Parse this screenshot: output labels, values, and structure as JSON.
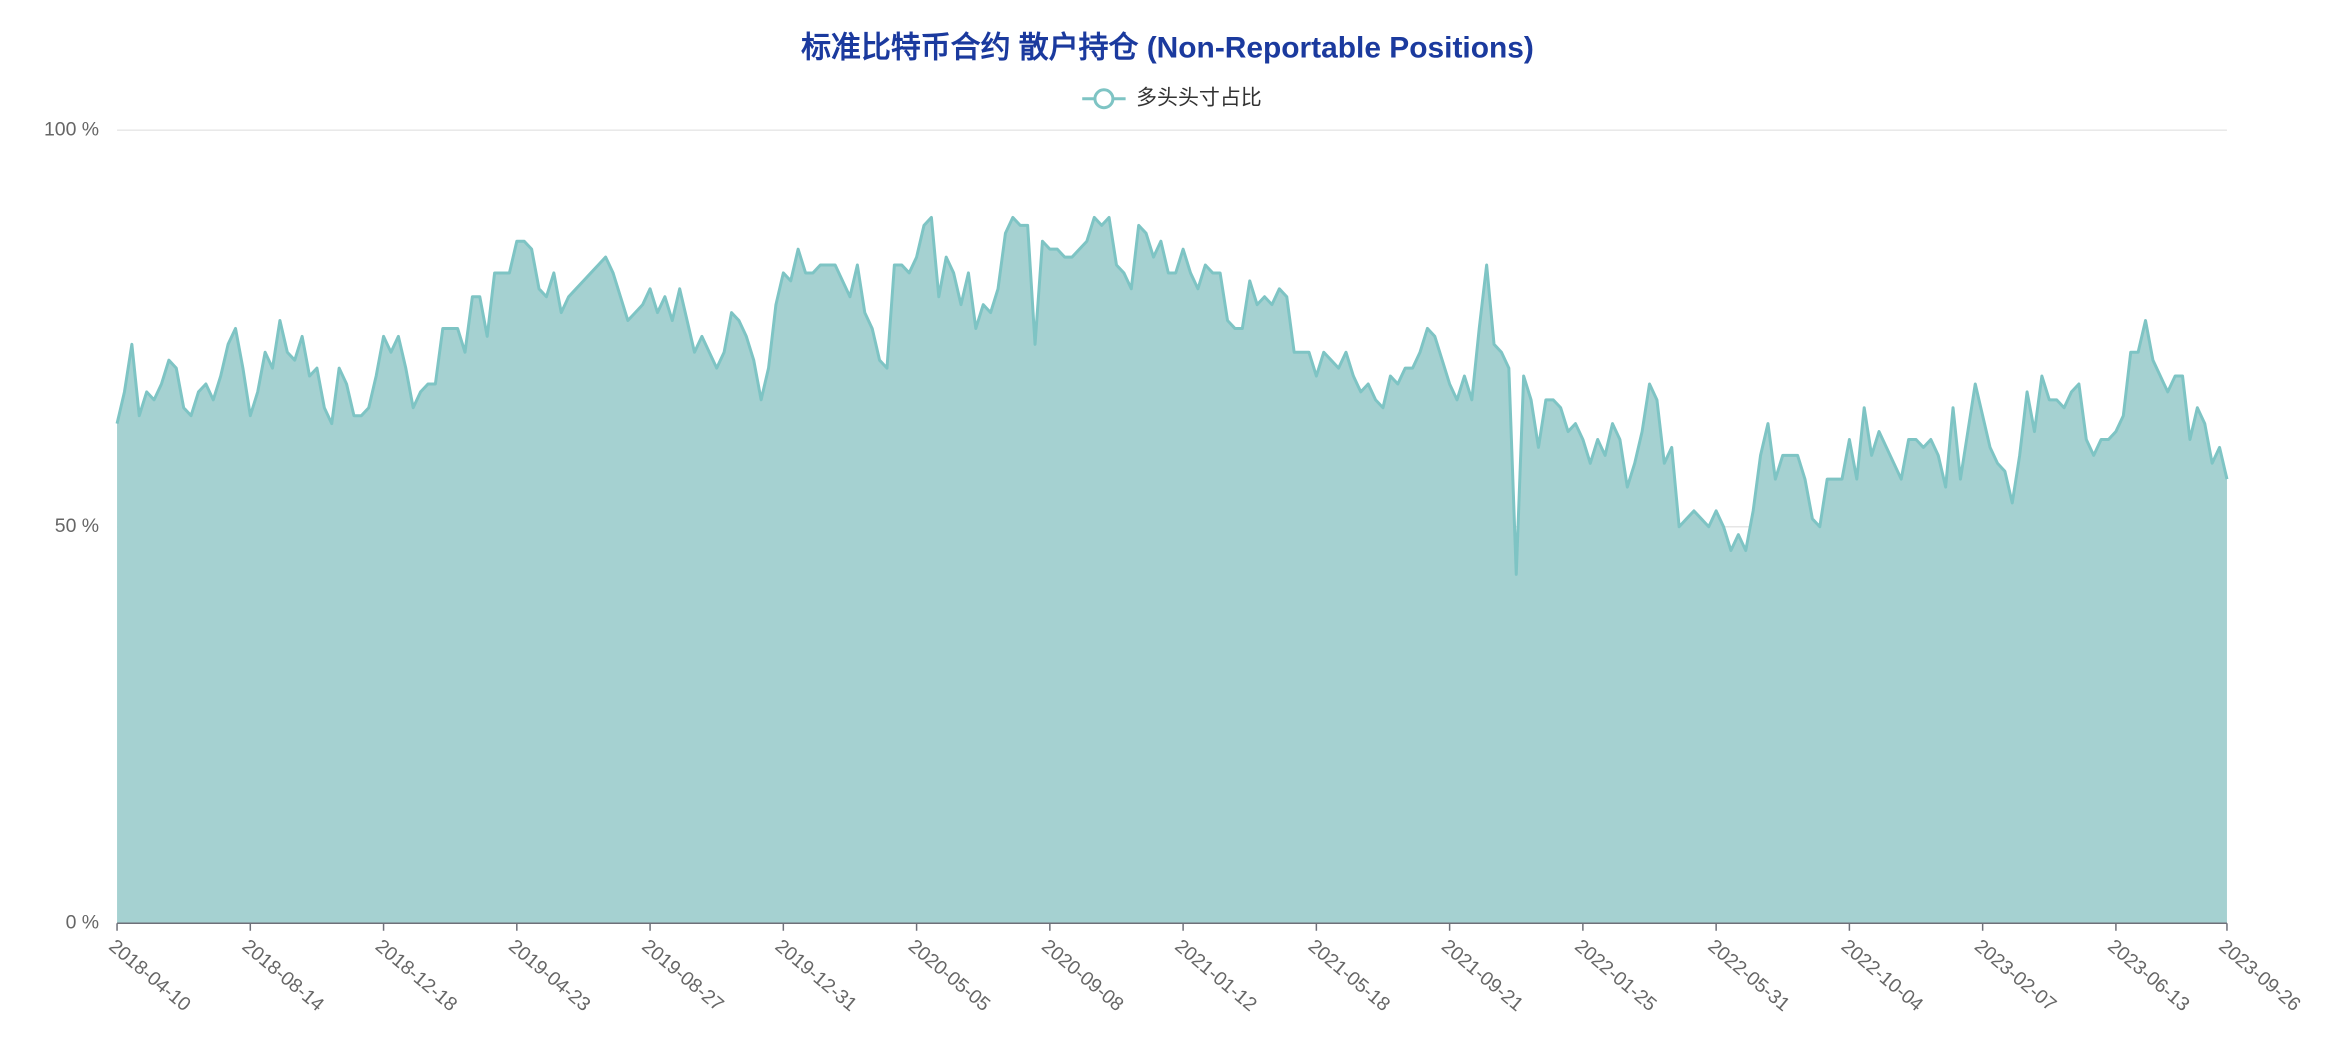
{
  "chart_data": {
    "type": "area",
    "title": "标准比特币合约 散户持仓 (Non-Reportable Positions)",
    "categories": [
      "2018-04-10",
      null,
      null,
      null,
      null,
      null,
      null,
      null,
      null,
      null,
      null,
      null,
      null,
      null,
      null,
      null,
      null,
      null,
      "2018-08-14",
      null,
      null,
      null,
      null,
      null,
      null,
      null,
      null,
      null,
      null,
      null,
      null,
      null,
      null,
      null,
      null,
      null,
      "2018-12-18",
      null,
      null,
      null,
      null,
      null,
      null,
      null,
      null,
      null,
      null,
      null,
      null,
      null,
      null,
      null,
      null,
      null,
      "2019-04-23",
      null,
      null,
      null,
      null,
      null,
      null,
      null,
      null,
      null,
      null,
      null,
      null,
      null,
      null,
      null,
      null,
      null,
      "2019-08-27",
      null,
      null,
      null,
      null,
      null,
      null,
      null,
      null,
      null,
      null,
      null,
      null,
      null,
      null,
      null,
      null,
      null,
      "2019-12-31",
      null,
      null,
      null,
      null,
      null,
      null,
      null,
      null,
      null,
      null,
      null,
      null,
      null,
      null,
      null,
      null,
      null,
      "2020-05-05",
      null,
      null,
      null,
      null,
      null,
      null,
      null,
      null,
      null,
      null,
      null,
      null,
      null,
      null,
      null,
      null,
      null,
      "2020-09-08",
      null,
      null,
      null,
      null,
      null,
      null,
      null,
      null,
      null,
      null,
      null,
      null,
      null,
      null,
      null,
      null,
      null,
      "2021-01-12",
      null,
      null,
      null,
      null,
      null,
      null,
      null,
      null,
      null,
      null,
      null,
      null,
      null,
      null,
      null,
      null,
      null,
      "2021-05-18",
      null,
      null,
      null,
      null,
      null,
      null,
      null,
      null,
      null,
      null,
      null,
      null,
      null,
      null,
      null,
      null,
      null,
      "2021-09-21",
      null,
      null,
      null,
      null,
      null,
      null,
      null,
      null,
      null,
      null,
      null,
      null,
      null,
      null,
      null,
      null,
      null,
      "2022-01-25",
      null,
      null,
      null,
      null,
      null,
      null,
      null,
      null,
      null,
      null,
      null,
      null,
      null,
      null,
      null,
      null,
      null,
      "2022-05-31",
      null,
      null,
      null,
      null,
      null,
      null,
      null,
      null,
      null,
      null,
      null,
      null,
      null,
      null,
      null,
      null,
      null,
      "2022-10-04",
      null,
      null,
      null,
      null,
      null,
      null,
      null,
      null,
      null,
      null,
      null,
      null,
      null,
      null,
      null,
      null,
      null,
      "2023-02-07",
      null,
      null,
      null,
      null,
      null,
      null,
      null,
      null,
      null,
      null,
      null,
      null,
      null,
      null,
      null,
      null,
      null,
      "2023-06-13",
      null,
      null,
      null,
      null,
      null,
      null,
      null,
      null,
      null,
      null,
      null,
      null,
      null,
      null,
      "2023-09-26"
    ],
    "series": [
      {
        "name": "多头头寸占比",
        "color": "#7ec4c4",
        "fill": "#a5d1d1",
        "values": [
          63,
          67,
          73,
          64,
          67,
          66,
          68,
          71,
          70,
          65,
          64,
          67,
          68,
          66,
          69,
          73,
          75,
          70,
          64,
          67,
          72,
          70,
          76,
          72,
          71,
          74,
          69,
          70,
          65,
          63,
          70,
          68,
          64,
          64,
          65,
          69,
          74,
          72,
          74,
          70,
          65,
          67,
          68,
          68,
          75,
          75,
          75,
          72,
          79,
          79,
          74,
          82,
          82,
          82,
          86,
          86,
          85,
          80,
          79,
          82,
          77,
          79,
          80,
          81,
          82,
          83,
          84,
          82,
          79,
          76,
          77,
          78,
          80,
          77,
          79,
          76,
          80,
          76,
          72,
          74,
          72,
          70,
          72,
          77,
          76,
          74,
          71,
          66,
          70,
          78,
          82,
          81,
          85,
          82,
          82,
          83,
          83,
          83,
          81,
          79,
          83,
          77,
          75,
          71,
          70,
          83,
          83,
          82,
          84,
          88,
          89,
          79,
          84,
          82,
          78,
          82,
          75,
          78,
          77,
          80,
          87,
          89,
          88,
          88,
          73,
          86,
          85,
          85,
          84,
          84,
          85,
          86,
          89,
          88,
          89,
          83,
          82,
          80,
          88,
          87,
          84,
          86,
          82,
          82,
          85,
          82,
          80,
          83,
          82,
          82,
          76,
          75,
          75,
          81,
          78,
          79,
          78,
          80,
          79,
          72,
          72,
          72,
          69,
          72,
          71,
          70,
          72,
          69,
          67,
          68,
          66,
          65,
          69,
          68,
          70,
          70,
          72,
          75,
          74,
          71,
          68,
          66,
          69,
          66,
          75,
          83,
          73,
          72,
          70,
          44,
          69,
          66,
          60,
          66,
          66,
          65,
          62,
          63,
          61,
          58,
          61,
          59,
          63,
          61,
          55,
          58,
          62,
          68,
          66,
          58,
          60,
          50,
          51,
          52,
          51,
          50,
          52,
          50,
          47,
          49,
          47,
          52,
          59,
          63,
          56,
          59,
          59,
          59,
          56,
          51,
          50,
          56,
          56,
          56,
          61,
          56,
          65,
          59,
          62,
          60,
          58,
          56,
          61,
          61,
          60,
          61,
          59,
          55,
          65,
          56,
          62,
          68,
          64,
          60,
          58,
          57,
          53,
          59,
          67,
          62,
          69,
          66,
          66,
          65,
          67,
          68,
          61,
          59,
          61,
          61,
          62,
          64,
          72,
          72,
          76,
          71,
          69,
          67,
          69,
          69,
          61,
          65,
          63,
          58,
          60,
          56
        ]
      }
    ],
    "ylim": [
      0,
      100
    ],
    "yticks": [
      {
        "value": 0,
        "label": "0 %"
      },
      {
        "value": 50,
        "label": "50 %"
      },
      {
        "value": 100,
        "label": "100 %"
      }
    ],
    "grid": true,
    "legend": "top"
  }
}
